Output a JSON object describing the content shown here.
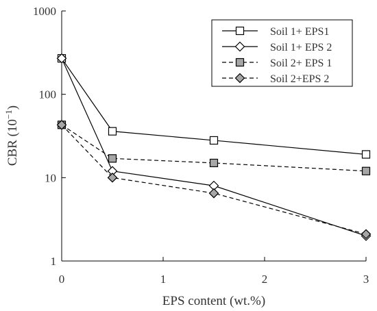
{
  "chart_data": {
    "type": "line",
    "title": "",
    "xlabel": "EPS content (wt.%)",
    "ylabel_main": "CBR (10",
    "ylabel_sup": "−1",
    "ylabel_end": ")",
    "xlim": [
      0,
      3
    ],
    "ylim": [
      1,
      1000
    ],
    "y_scale": "log",
    "grid": false,
    "legend_position": "top-right",
    "x_ticks": [
      0,
      1,
      2,
      3
    ],
    "x_tick_labels": [
      "0",
      "1",
      "2",
      "3"
    ],
    "y_ticks": [
      1,
      10,
      100,
      1000
    ],
    "y_tick_labels": [
      "1",
      "10",
      "100",
      "1000"
    ],
    "series": [
      {
        "name": "Soil 1+ EPS1",
        "x": [
          0,
          0.5,
          1.5,
          3
        ],
        "y": [
          270,
          36,
          28,
          19
        ],
        "marker": "square",
        "marker_fill": "#ffffff",
        "line": "solid",
        "color": "#000000"
      },
      {
        "name": "Soil 1+ EPS 2",
        "x": [
          0,
          0.5,
          1.5,
          3
        ],
        "y": [
          270,
          12,
          8,
          2
        ],
        "marker": "diamond",
        "marker_fill": "#ffffff",
        "line": "solid",
        "color": "#000000"
      },
      {
        "name": "Soil 2+ EPS 1",
        "x": [
          0,
          0.5,
          1.5,
          3
        ],
        "y": [
          43,
          17,
          15,
          12
        ],
        "marker": "square",
        "marker_fill": "#a6a6a6",
        "line": "dashed",
        "color": "#000000"
      },
      {
        "name": "Soil 2+EPS 2",
        "x": [
          0,
          0.5,
          1.5,
          3
        ],
        "y": [
          43,
          10,
          6.5,
          2.1
        ],
        "marker": "diamond",
        "marker_fill": "#a6a6a6",
        "line": "dashed",
        "color": "#000000"
      }
    ]
  }
}
